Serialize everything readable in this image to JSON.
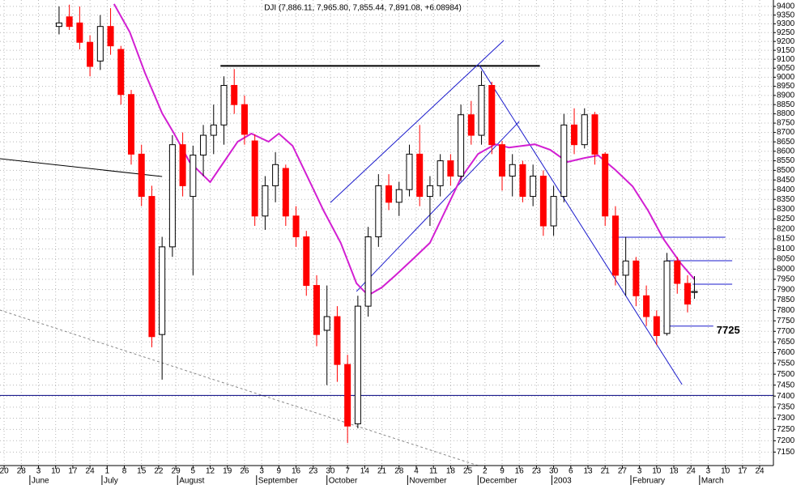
{
  "chart_data": {
    "type": "candlestick",
    "title": "DJI (7,886.11, 7,965.80, 7,855.44, 7,891.08, +6.08984)",
    "x": [
      16,
      19,
      22,
      25,
      28,
      31,
      34,
      37,
      40,
      43,
      46,
      49,
      52,
      55,
      58,
      61,
      64,
      67,
      70,
      73,
      76,
      79,
      82,
      85,
      88,
      91,
      94,
      97,
      100,
      103,
      106,
      109,
      112,
      115,
      118,
      121,
      124,
      127,
      130,
      133,
      136,
      139,
      142,
      145,
      148,
      151,
      154,
      157,
      160,
      163,
      166,
      169,
      172,
      175,
      178,
      181,
      184,
      187,
      190,
      193,
      196,
      199,
      201
    ],
    "open": [
      9285,
      9340,
      9305,
      9195,
      9090,
      9285,
      9155,
      8905,
      8585,
      8365,
      7685,
      8110,
      8635,
      8365,
      8580,
      8685,
      8740,
      8955,
      8850,
      8655,
      8265,
      8420,
      8510,
      8265,
      8160,
      7920,
      7705,
      7770,
      7545,
      7275,
      7820,
      8160,
      8420,
      8335,
      8400,
      8585,
      8365,
      8420,
      8550,
      8470,
      8795,
      8685,
      8955,
      8635,
      8470,
      8530,
      8365,
      8470,
      8215,
      8365,
      8740,
      8635,
      8795,
      8585,
      8265,
      7970,
      8040,
      7870,
      7770,
      7690,
      8040,
      7930,
      7886.11
    ],
    "high": [
      9400,
      9410,
      9400,
      9235,
      9350,
      9390,
      9175,
      8930,
      8635,
      8420,
      8160,
      8685,
      8700,
      8630,
      8740,
      8850,
      9005,
      9045,
      8900,
      8690,
      8470,
      8595,
      8530,
      8315,
      8190,
      7970,
      7920,
      7820,
      7590,
      7870,
      8210,
      8480,
      8480,
      8440,
      8635,
      8740,
      8470,
      8585,
      8585,
      8850,
      8870,
      9035,
      8975,
      8655,
      8585,
      8550,
      8530,
      8500,
      8420,
      8800,
      8830,
      8830,
      8810,
      8595,
      8315,
      8160,
      8060,
      7920,
      7800,
      8080,
      8060,
      7970,
      7965.8
    ],
    "low": [
      9240,
      9265,
      9155,
      9005,
      9040,
      9125,
      8850,
      8530,
      8315,
      7625,
      7475,
      8060,
      8365,
      7970,
      8470,
      8585,
      8635,
      8800,
      8635,
      8215,
      8195,
      8335,
      8215,
      8110,
      7870,
      7630,
      7450,
      7465,
      7190,
      7255,
      7770,
      8110,
      8295,
      8265,
      8365,
      8315,
      8215,
      8365,
      8420,
      8445,
      8635,
      8635,
      8585,
      8395,
      8365,
      8335,
      8315,
      8165,
      8165,
      8335,
      8585,
      8615,
      8530,
      8215,
      7920,
      7870,
      7820,
      7725,
      7635,
      7680,
      7880,
      7790,
      7855.44
    ],
    "close": [
      9305,
      9285,
      9195,
      9060,
      9285,
      9175,
      8905,
      8585,
      8365,
      7675,
      8110,
      8635,
      8420,
      8580,
      8685,
      8740,
      8955,
      8850,
      8690,
      8265,
      8420,
      8530,
      8265,
      8160,
      7920,
      7685,
      7770,
      7545,
      7265,
      7820,
      8160,
      8420,
      8335,
      8400,
      8585,
      8365,
      8420,
      8550,
      8470,
      8795,
      8685,
      8955,
      8635,
      8470,
      8530,
      8365,
      8470,
      8215,
      8365,
      8740,
      8635,
      8795,
      8585,
      8265,
      7970,
      8040,
      7870,
      7770,
      7680,
      8040,
      7930,
      7830,
      7891.08
    ],
    "up_color": "#ffffff",
    "down_color": "#ff0000",
    "xlim": [
      -1.2,
      224
    ],
    "ylim": [
      7091,
      9437
    ],
    "log_scale": true,
    "grid": true,
    "yticks": [
      7150,
      7200,
      7250,
      7300,
      7350,
      7400,
      7450,
      7500,
      7550,
      7600,
      7650,
      7700,
      7750,
      7800,
      7850,
      7900,
      7950,
      8000,
      8050,
      8100,
      8150,
      8200,
      8250,
      8300,
      8350,
      8400,
      8450,
      8500,
      8550,
      8600,
      8650,
      8700,
      8750,
      8800,
      8850,
      8900,
      8950,
      9000,
      9050,
      9100,
      9150,
      9200,
      9250,
      9300,
      9350,
      9400
    ],
    "xticks": [
      {
        "value": 0,
        "label": "20"
      },
      {
        "value": 5,
        "label": "28"
      },
      {
        "value": 10,
        "label": "3"
      },
      {
        "value": 15,
        "label": "10"
      },
      {
        "value": 20,
        "label": "17"
      },
      {
        "value": 25,
        "label": "24"
      },
      {
        "value": 30,
        "label": "1"
      },
      {
        "value": 35,
        "label": "8"
      },
      {
        "value": 40,
        "label": "15"
      },
      {
        "value": 45,
        "label": "22"
      },
      {
        "value": 50,
        "label": "29"
      },
      {
        "value": 55,
        "label": "5"
      },
      {
        "value": 60,
        "label": "12"
      },
      {
        "value": 65,
        "label": "19"
      },
      {
        "value": 70,
        "label": "26"
      },
      {
        "value": 75,
        "label": "3"
      },
      {
        "value": 80,
        "label": "9"
      },
      {
        "value": 85,
        "label": "16"
      },
      {
        "value": 90,
        "label": "23"
      },
      {
        "value": 95,
        "label": "30"
      },
      {
        "value": 100,
        "label": "7"
      },
      {
        "value": 105,
        "label": "14"
      },
      {
        "value": 110,
        "label": "21"
      },
      {
        "value": 115,
        "label": "28"
      },
      {
        "value": 120,
        "label": "4"
      },
      {
        "value": 125,
        "label": "11"
      },
      {
        "value": 130,
        "label": "18"
      },
      {
        "value": 135,
        "label": "25"
      },
      {
        "value": 140,
        "label": "2"
      },
      {
        "value": 145,
        "label": "9"
      },
      {
        "value": 150,
        "label": "16"
      },
      {
        "value": 155,
        "label": "23"
      },
      {
        "value": 160,
        "label": "30"
      },
      {
        "value": 165,
        "label": "6"
      },
      {
        "value": 170,
        "label": "13"
      },
      {
        "value": 175,
        "label": "21"
      },
      {
        "value": 180,
        "label": "27"
      },
      {
        "value": 185,
        "label": "3"
      },
      {
        "value": 190,
        "label": "10"
      },
      {
        "value": 195,
        "label": "18"
      },
      {
        "value": 200,
        "label": "24"
      },
      {
        "value": 205,
        "label": "3"
      },
      {
        "value": 210,
        "label": "10"
      },
      {
        "value": 215,
        "label": "17"
      },
      {
        "value": 220,
        "label": "24"
      }
    ],
    "month_labels": [
      {
        "value": 7.5,
        "label": "June"
      },
      {
        "value": 28.5,
        "label": "July"
      },
      {
        "value": 50.5,
        "label": "August"
      },
      {
        "value": 73.5,
        "label": "September"
      },
      {
        "value": 94,
        "label": "October"
      },
      {
        "value": 117.5,
        "label": "November"
      },
      {
        "value": 138,
        "label": "December"
      },
      {
        "value": 159.5,
        "label": "2003"
      },
      {
        "value": 182.5,
        "label": "February"
      },
      {
        "value": 202.5,
        "label": "March"
      }
    ],
    "moving_average": {
      "color": "#d21fd2",
      "x": [
        32,
        36.6,
        41,
        46,
        49.5,
        54,
        60,
        64,
        68,
        72,
        77,
        80,
        84,
        88.5,
        93,
        98,
        102.6,
        106,
        110,
        114,
        119,
        124,
        128.5,
        133,
        138,
        143,
        147,
        154.5,
        159,
        164,
        169,
        173,
        178,
        183,
        187.5,
        192,
        197,
        201
      ],
      "values": [
        9414,
        9252,
        9024,
        8803,
        8694,
        8544,
        8439,
        8544,
        8651,
        8694,
        8651,
        8694,
        8629,
        8460,
        8293,
        8130,
        7930,
        7872,
        7911,
        7970,
        8049,
        8130,
        8293,
        8460,
        8586,
        8637,
        8620,
        8637,
        8608,
        8544,
        8565,
        8578,
        8502,
        8417,
        8293,
        8149,
        8029,
        7950
      ]
    },
    "trendlines": [
      {
        "color": "#000000",
        "width": 2,
        "x": [
          63,
          156
        ],
        "y": [
          9063,
          9063
        ]
      },
      {
        "color": "#1a1acc",
        "width": 1,
        "x": [
          95,
          145.5
        ],
        "y": [
          8333,
          9206
        ]
      },
      {
        "color": "#1a1acc",
        "width": 1,
        "x": [
          102.6,
          150
        ],
        "y": [
          7891,
          8759
        ]
      },
      {
        "color": "#1a1acc",
        "width": 1,
        "x": [
          138.4,
          197.4
        ],
        "y": [
          9066,
          7453
        ]
      },
      {
        "color": "#000000",
        "width": 1,
        "x": [
          -1.2,
          46
        ],
        "y": [
          8561,
          8468
        ]
      },
      {
        "color": "#888888",
        "width": 1,
        "dashed": true,
        "x": [
          -1.2,
          138
        ],
        "y": [
          7801,
          7091
        ]
      },
      {
        "color": "#000080",
        "width": 1,
        "x": [
          -1.2,
          224
        ],
        "y": [
          7403,
          7403
        ]
      },
      {
        "color": "#1a1acc",
        "width": 1,
        "x": [
          177,
          210
        ],
        "y": [
          8158,
          8158
        ]
      },
      {
        "color": "#1a1acc",
        "width": 1,
        "x": [
          193,
          212
        ],
        "y": [
          8041,
          8041
        ]
      },
      {
        "color": "#1a1acc",
        "width": 1,
        "x": [
          200.5,
          212
        ],
        "y": [
          7926,
          7926
        ]
      },
      {
        "color": "#1a1acc",
        "width": 1,
        "x": [
          192,
          206.5
        ],
        "y": [
          7725,
          7725
        ],
        "label_color": "#e020e0"
      }
    ]
  }
}
